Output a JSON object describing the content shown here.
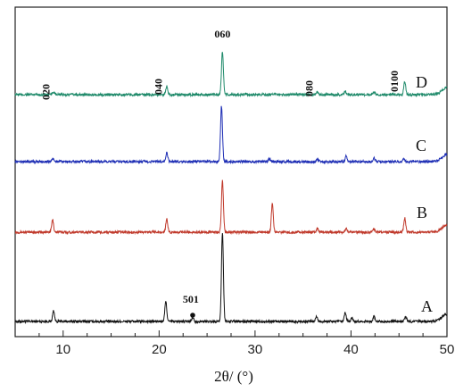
{
  "chart_data": {
    "type": "line",
    "xlabel": "2θ/ (°)",
    "ylabel": "",
    "xlim": [
      5,
      50
    ],
    "x_ticks": [
      10,
      20,
      30,
      40,
      50
    ],
    "grid": false,
    "series_offset_order": [
      "A",
      "B",
      "C",
      "D"
    ],
    "series": [
      {
        "name": "A",
        "color": "#111111",
        "peaks": [
          {
            "x": 9.0,
            "h": 0.15
          },
          {
            "x": 20.7,
            "h": 0.28
          },
          {
            "x": 23.5,
            "h": 0.06
          },
          {
            "x": 26.6,
            "h": 1.25
          },
          {
            "x": 36.4,
            "h": 0.07
          },
          {
            "x": 39.4,
            "h": 0.12
          },
          {
            "x": 40.1,
            "h": 0.05
          },
          {
            "x": 42.4,
            "h": 0.07
          },
          {
            "x": 45.7,
            "h": 0.07
          },
          {
            "x": 50.0,
            "h": 0.1
          }
        ]
      },
      {
        "name": "B",
        "color": "#c0392b",
        "peaks": [
          {
            "x": 8.9,
            "h": 0.17
          },
          {
            "x": 20.8,
            "h": 0.18
          },
          {
            "x": 26.6,
            "h": 0.72
          },
          {
            "x": 31.8,
            "h": 0.4
          },
          {
            "x": 36.5,
            "h": 0.05
          },
          {
            "x": 39.5,
            "h": 0.05
          },
          {
            "x": 42.4,
            "h": 0.05
          },
          {
            "x": 45.6,
            "h": 0.2
          },
          {
            "x": 50.0,
            "h": 0.1
          }
        ]
      },
      {
        "name": "C",
        "color": "#1f2fb5",
        "peaks": [
          {
            "x": 8.9,
            "h": 0.04
          },
          {
            "x": 20.8,
            "h": 0.12
          },
          {
            "x": 26.5,
            "h": 0.78
          },
          {
            "x": 31.5,
            "h": 0.04
          },
          {
            "x": 36.5,
            "h": 0.04
          },
          {
            "x": 39.5,
            "h": 0.08
          },
          {
            "x": 42.4,
            "h": 0.05
          },
          {
            "x": 45.5,
            "h": 0.04
          },
          {
            "x": 50.0,
            "h": 0.1
          }
        ]
      },
      {
        "name": "D",
        "color": "#1f8a6a",
        "peaks": [
          {
            "x": 9.0,
            "h": 0.04
          },
          {
            "x": 20.8,
            "h": 0.12
          },
          {
            "x": 26.6,
            "h": 0.6
          },
          {
            "x": 36.5,
            "h": 0.04
          },
          {
            "x": 39.4,
            "h": 0.05
          },
          {
            "x": 42.4,
            "h": 0.04
          },
          {
            "x": 45.6,
            "h": 0.18
          },
          {
            "x": 50.0,
            "h": 0.1
          }
        ]
      }
    ],
    "annotations": [
      {
        "text": "020",
        "x": 8.6,
        "series": "D",
        "rotated": true
      },
      {
        "text": "040",
        "x": 20.3,
        "series": "D",
        "rotated": true
      },
      {
        "text": "060",
        "x": 26.6,
        "series": "D",
        "rotated": false
      },
      {
        "text": "080",
        "x": 36.0,
        "series": "D",
        "rotated": true
      },
      {
        "text": "0100",
        "x": 44.9,
        "series": "D",
        "rotated": true
      },
      {
        "text": "501",
        "x": 23.3,
        "series": "A",
        "rotated": false,
        "marker": "dot"
      }
    ]
  }
}
